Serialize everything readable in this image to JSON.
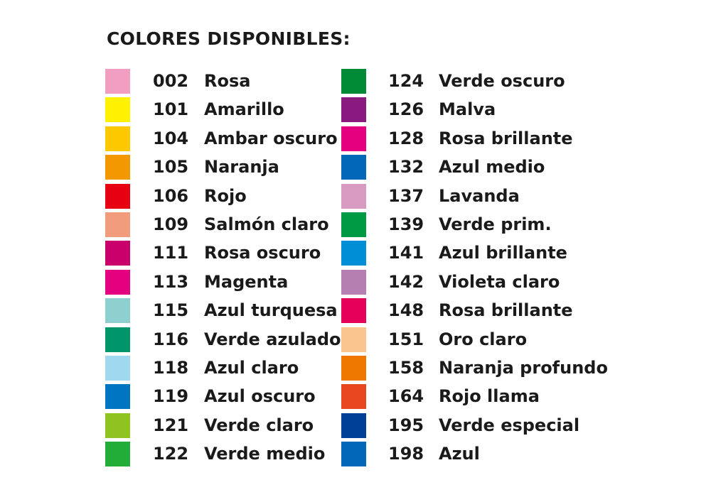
{
  "title": "COLORES DISPONIBLES:",
  "columns": [
    [
      {
        "code": "002",
        "name": "Rosa",
        "color": "#f19ec2"
      },
      {
        "code": "101",
        "name": "Amarillo",
        "color": "#fff100"
      },
      {
        "code": "104",
        "name": "Ambar oscuro",
        "color": "#fcc800"
      },
      {
        "code": "105",
        "name": "Naranja",
        "color": "#f39800"
      },
      {
        "code": "106",
        "name": "Rojo",
        "color": "#e60012"
      },
      {
        "code": "109",
        "name": "Salmón claro",
        "color": "#f19c7c"
      },
      {
        "code": "111",
        "name": "Rosa oscuro",
        "color": "#c9006b"
      },
      {
        "code": "113",
        "name": "Magenta",
        "color": "#e4007f"
      },
      {
        "code": "115",
        "name": "Azul turquesa",
        "color": "#8ecfd0"
      },
      {
        "code": "116",
        "name": "Verde azulado",
        "color": "#00956b"
      },
      {
        "code": "118",
        "name": "Azul claro",
        "color": "#a0d8ef"
      },
      {
        "code": "119",
        "name": "Azul oscuro",
        "color": "#0075c2"
      },
      {
        "code": "121",
        "name": "Verde claro",
        "color": "#8fc31f"
      },
      {
        "code": "122",
        "name": "Verde medio",
        "color": "#22ac38"
      }
    ],
    [
      {
        "code": "124",
        "name": "Verde oscuro",
        "color": "#008a35"
      },
      {
        "code": "126",
        "name": "Malva",
        "color": "#8a1a7f"
      },
      {
        "code": "128",
        "name": "Rosa brillante",
        "color": "#e4007f"
      },
      {
        "code": "132",
        "name": "Azul medio",
        "color": "#0068b7"
      },
      {
        "code": "137",
        "name": "Lavanda",
        "color": "#d79ac1"
      },
      {
        "code": "139",
        "name": "Verde prim.",
        "color": "#009944"
      },
      {
        "code": "141",
        "name": "Azul brillante",
        "color": "#008fd7"
      },
      {
        "code": "142",
        "name": "Violeta claro",
        "color": "#b67fb2"
      },
      {
        "code": "148",
        "name": "Rosa brillante",
        "color": "#e5005a"
      },
      {
        "code": "151",
        "name": "Oro claro",
        "color": "#fac58f"
      },
      {
        "code": "158",
        "name": "Naranja profundo",
        "color": "#ee7700"
      },
      {
        "code": "164",
        "name": "Rojo llama",
        "color": "#e8461e"
      },
      {
        "code": "195",
        "name": "Verde especial",
        "color": "#004097"
      },
      {
        "code": "198",
        "name": "Azul",
        "color": "#0068b7"
      }
    ]
  ]
}
